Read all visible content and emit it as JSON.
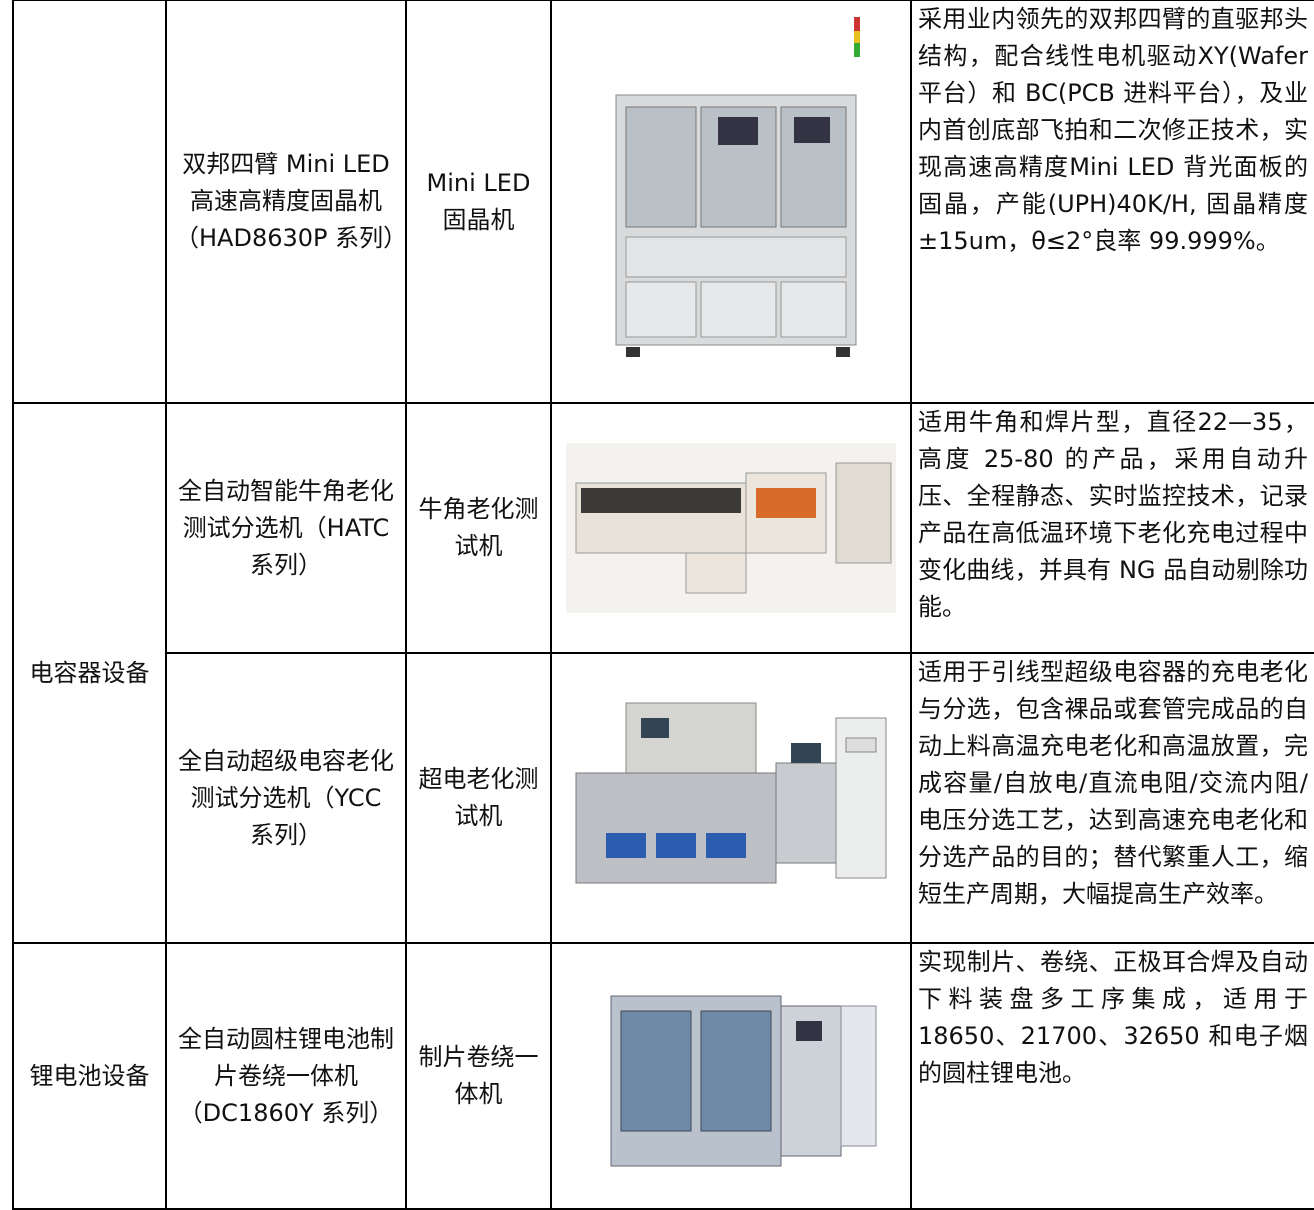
{
  "table": {
    "rows": [
      {
        "name": "双邦四臂 Mini LED 高速高精度固晶机（HAD8630P 系列）",
        "short": "Mini LED 固晶机",
        "description": "采用业内领先的双邦四臂的直驱邦头结构，配合线性电机驱动XY(Wafer 平台）和 BC(PCB 进料平台），及业内首创底部飞拍和二次修正技术，实现高速高精度Mini LED 背光面板的固晶，产能(UPH)40K/H, 固晶精度±15um，θ≤2°良率 99.999%。"
      },
      {
        "category": "电容器设备",
        "name": "全自动智能牛角老化测试分选机（HATC 系列）",
        "short": "牛角老化测试机",
        "description": "适用牛角和焊片型，直径22—35，高度 25-80 的产品，采用自动升压、全程静态、实时监控技术，记录产品在高低温环境下老化充电过程中变化曲线，并具有 NG 品自动剔除功能。"
      },
      {
        "name": "全自动超级电容老化测试分选机（YCC 系列）",
        "short": "超电老化测试机",
        "description": "适用于引线型超级电容器的充电老化与分选，包含裸品或套管完成品的自动上料高温充电老化和高温放置，完成容量/自放电/直流电阻/交流内阻/电压分选工艺，达到高速充电老化和分选产品的目的；替代繁重人工，缩短生产周期，大幅提高生产效率。"
      },
      {
        "category": "锂电池设备",
        "name": "全自动圆柱锂电池制片卷绕一体机（DC1860Y 系列）",
        "short": "制片卷绕一体机",
        "description": "实现制片、卷绕、正极耳合焊及自动下料装盘多工序集成，适用于 18650、21700、32650 和电子烟的圆柱锂电池。"
      }
    ]
  }
}
